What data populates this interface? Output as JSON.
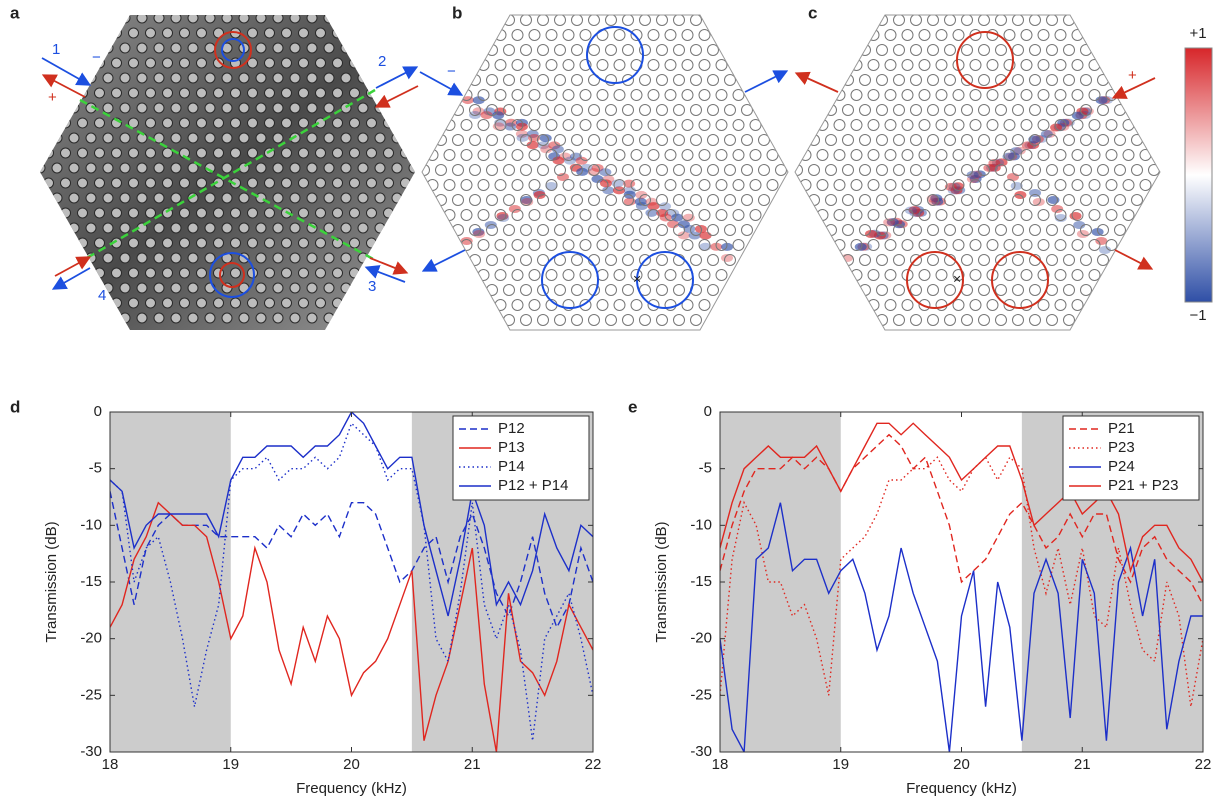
{
  "panels": {
    "a": {
      "label": "a",
      "ports": [
        "1",
        "2",
        "3",
        "4"
      ],
      "signs": [
        "−",
        "+"
      ]
    },
    "b": {
      "label": "b",
      "sign": "−"
    },
    "c": {
      "label": "c",
      "sign": "+"
    },
    "colorbar": {
      "max_label": "+1",
      "min_label": "−1"
    }
  },
  "chart_data": [
    {
      "type": "line",
      "label": "d",
      "x_label": "Frequency (kHz)",
      "y_label": "Transmission (dB)",
      "xlim": [
        18,
        22
      ],
      "ylim": [
        -30,
        0
      ],
      "xticks": [
        18,
        19,
        20,
        21,
        22
      ],
      "yticks": [
        0,
        -5,
        -10,
        -15,
        -20,
        -25,
        -30
      ],
      "legend": "upper right",
      "shaded_regions": [
        [
          18,
          19
        ],
        [
          20.5,
          22
        ]
      ],
      "shade_color": "#cccccc",
      "x": [
        18.0,
        18.1,
        18.2,
        18.3,
        18.4,
        18.5,
        18.6,
        18.7,
        18.8,
        18.9,
        19.0,
        19.1,
        19.2,
        19.3,
        19.4,
        19.5,
        19.6,
        19.7,
        19.8,
        19.9,
        20.0,
        20.1,
        20.2,
        20.3,
        20.4,
        20.5,
        20.6,
        20.7,
        20.8,
        20.9,
        21.0,
        21.1,
        21.2,
        21.3,
        21.4,
        21.5,
        21.6,
        21.7,
        21.8,
        21.9,
        22.0
      ],
      "series": [
        {
          "name": "P12",
          "color": "#1c2fc9",
          "dash": "dashed",
          "values": [
            -7,
            -12,
            -17,
            -12,
            -10,
            -9,
            -10,
            -10,
            -10,
            -11,
            -11,
            -11,
            -11,
            -12,
            -10,
            -11,
            -9,
            -10,
            -9,
            -11,
            -8,
            -8,
            -9,
            -12,
            -15,
            -14,
            -12,
            -11,
            -15,
            -11,
            -9,
            -12,
            -16,
            -18,
            -15,
            -11,
            -16,
            -19,
            -17,
            -12,
            -15
          ]
        },
        {
          "name": "P13",
          "color": "#e0261f",
          "dash": "solid",
          "values": [
            -19,
            -17,
            -13,
            -11,
            -8,
            -9,
            -10,
            -10,
            -11,
            -15,
            -20,
            -18,
            -12,
            -15,
            -21,
            -24,
            -19,
            -22,
            -18,
            -20,
            -25,
            -23,
            -22,
            -20,
            -17,
            -14,
            -29,
            -25,
            -22,
            -17,
            -12,
            -24,
            -30,
            -16,
            -22,
            -23,
            -25,
            -22,
            -17,
            -19,
            -21
          ]
        },
        {
          "name": "P14",
          "color": "#1c2fc9",
          "dash": "dotted",
          "values": [
            -6,
            -7,
            -15,
            -12,
            -11,
            -15,
            -20,
            -26,
            -21,
            -17,
            -6,
            -5,
            -5,
            -4,
            -6,
            -5,
            -5,
            -4,
            -5,
            -4,
            -1,
            -2,
            -3,
            -6,
            -5,
            -5,
            -10,
            -20,
            -22,
            -16,
            -8,
            -17,
            -20,
            -17,
            -21,
            -29,
            -20,
            -18,
            -16,
            -20,
            -25
          ]
        },
        {
          "name": "P12 + P14",
          "color": "#1c2fc9",
          "dash": "solid",
          "values": [
            -6,
            -7,
            -12,
            -10,
            -9,
            -9,
            -9,
            -9,
            -9,
            -11,
            -6,
            -4,
            -4,
            -3,
            -3,
            -3,
            -4,
            -3,
            -3,
            -2,
            0,
            -1,
            -3,
            -5,
            -4,
            -4,
            -10,
            -14,
            -18,
            -13,
            -7,
            -10,
            -17,
            -15,
            -17,
            -14,
            -9,
            -12,
            -14,
            -10,
            -11
          ]
        }
      ]
    },
    {
      "type": "line",
      "label": "e",
      "x_label": "Frequency (kHz)",
      "y_label": "Transmission (dB)",
      "xlim": [
        18,
        22
      ],
      "ylim": [
        -30,
        0
      ],
      "xticks": [
        18,
        19,
        20,
        21,
        22
      ],
      "yticks": [
        0,
        -5,
        -10,
        -15,
        -20,
        -25,
        -30
      ],
      "legend": "upper right",
      "shaded_regions": [
        [
          18,
          19
        ],
        [
          20.5,
          22
        ]
      ],
      "shade_color": "#cccccc",
      "x": [
        18.0,
        18.1,
        18.2,
        18.3,
        18.4,
        18.5,
        18.6,
        18.7,
        18.8,
        18.9,
        19.0,
        19.1,
        19.2,
        19.3,
        19.4,
        19.5,
        19.6,
        19.7,
        19.8,
        19.9,
        20.0,
        20.1,
        20.2,
        20.3,
        20.4,
        20.5,
        20.6,
        20.7,
        20.8,
        20.9,
        21.0,
        21.1,
        21.2,
        21.3,
        21.4,
        21.5,
        21.6,
        21.7,
        21.8,
        21.9,
        22.0
      ],
      "series": [
        {
          "name": "P21",
          "color": "#e0261f",
          "dash": "dashed",
          "values": [
            -14,
            -10,
            -7,
            -5,
            -5,
            -5,
            -4,
            -5,
            -4,
            -5,
            -7,
            -5,
            -4,
            -3,
            -2,
            -3,
            -5,
            -4,
            -7,
            -10,
            -15,
            -14,
            -13,
            -11,
            -9,
            -8,
            -10,
            -12,
            -11,
            -9,
            -11,
            -9,
            -9,
            -13,
            -15,
            -12,
            -11,
            -13,
            -14,
            -15,
            -17
          ]
        },
        {
          "name": "P23",
          "color": "#e0261f",
          "dash": "dotted",
          "values": [
            -25,
            -13,
            -8,
            -10,
            -15,
            -15,
            -18,
            -17,
            -20,
            -25,
            -13,
            -12,
            -11,
            -9,
            -6,
            -6,
            -5,
            -5,
            -4,
            -6,
            -7,
            -5,
            -4,
            -6,
            -4,
            -5,
            -12,
            -16,
            -12,
            -17,
            -12,
            -18,
            -19,
            -12,
            -17,
            -21,
            -22,
            -15,
            -18,
            -26,
            -20
          ]
        },
        {
          "name": "P24",
          "color": "#1c2fc9",
          "dash": "solid",
          "values": [
            -20,
            -28,
            -30,
            -13,
            -12,
            -8,
            -14,
            -13,
            -13,
            -16,
            -14,
            -13,
            -16,
            -21,
            -18,
            -12,
            -16,
            -19,
            -22,
            -30,
            -18,
            -14,
            -26,
            -15,
            -19,
            -29,
            -16,
            -13,
            -16,
            -27,
            -13,
            -16,
            -29,
            -15,
            -12,
            -18,
            -13,
            -28,
            -22,
            -18,
            -18
          ]
        },
        {
          "name": "P21 + P23",
          "color": "#e0261f",
          "dash": "solid",
          "values": [
            -12,
            -8,
            -5,
            -4,
            -3,
            -4,
            -4,
            -4,
            -3,
            -5,
            -7,
            -5,
            -3,
            -1,
            -1,
            -2,
            -1,
            -2,
            -3,
            -4,
            -6,
            -5,
            -4,
            -3,
            -3,
            -6,
            -10,
            -9,
            -8,
            -7,
            -9,
            -8,
            -7,
            -9,
            -14,
            -11,
            -10,
            -10,
            -12,
            -13,
            -15
          ]
        }
      ]
    }
  ]
}
